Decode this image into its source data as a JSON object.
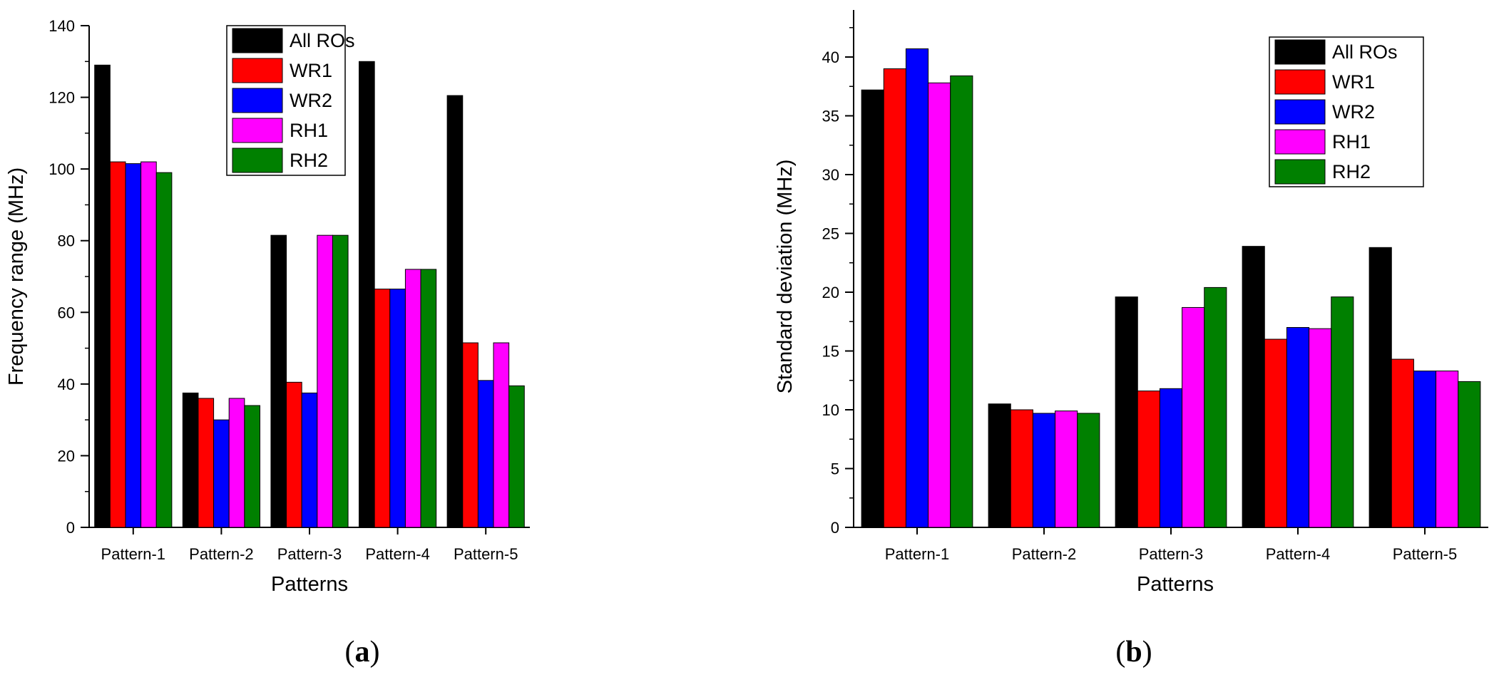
{
  "series_colors": {
    "All ROs": "#000000",
    "WR1": "#ff0000",
    "WR2": "#0000ff",
    "RH1": "#ff00ff",
    "RH2": "#008000"
  },
  "chart_data": [
    {
      "type": "bar",
      "panel_label": "(a)",
      "panel_letter": "a",
      "title": "",
      "xlabel": "Patterns",
      "ylabel": "Frequency range (MHz)",
      "ylim": [
        0,
        140
      ],
      "yticks": [
        0,
        20,
        40,
        60,
        80,
        100,
        120,
        140
      ],
      "ytick_labels": [
        "0",
        "20",
        "40",
        "60",
        "80",
        "100",
        "120",
        "140"
      ],
      "minor_step": 10,
      "categories": [
        "Pattern-1",
        "Pattern-2",
        "Pattern-3",
        "Pattern-4",
        "Pattern-5"
      ],
      "legend_position": "top-center",
      "series": [
        {
          "name": "All ROs",
          "values": [
            129,
            37.5,
            81.5,
            130,
            120.5
          ]
        },
        {
          "name": "WR1",
          "values": [
            102,
            36,
            40.5,
            66.5,
            51.5
          ]
        },
        {
          "name": "WR2",
          "values": [
            101.5,
            30,
            37.5,
            66.5,
            41
          ]
        },
        {
          "name": "RH1",
          "values": [
            102,
            36,
            81.5,
            72,
            51.5
          ]
        },
        {
          "name": "RH2",
          "values": [
            99,
            34,
            81.5,
            72,
            39.5
          ]
        }
      ]
    },
    {
      "type": "bar",
      "panel_label": "(b)",
      "panel_letter": "b",
      "title": "",
      "xlabel": "Patterns",
      "ylabel": "Standard deviation (MHz)",
      "ylim": [
        0,
        44
      ],
      "yticks": [
        0,
        5,
        10,
        15,
        20,
        25,
        30,
        35,
        40
      ],
      "ytick_labels": [
        "0",
        "5",
        "10",
        "15",
        "20",
        "25",
        "30",
        "35",
        "40"
      ],
      "minor_step": 2.5,
      "categories": [
        "Pattern-1",
        "Pattern-2",
        "Pattern-3",
        "Pattern-4",
        "Pattern-5"
      ],
      "legend_position": "top-right",
      "series": [
        {
          "name": "All ROs",
          "values": [
            37.2,
            10.5,
            19.6,
            23.9,
            23.8
          ]
        },
        {
          "name": "WR1",
          "values": [
            39,
            10,
            11.6,
            16,
            14.3
          ]
        },
        {
          "name": "WR2",
          "values": [
            40.7,
            9.7,
            11.8,
            17,
            13.3
          ]
        },
        {
          "name": "RH1",
          "values": [
            37.8,
            9.9,
            18.7,
            16.9,
            13.3
          ]
        },
        {
          "name": "RH2",
          "values": [
            38.4,
            9.7,
            20.4,
            19.6,
            12.4
          ]
        }
      ]
    }
  ]
}
